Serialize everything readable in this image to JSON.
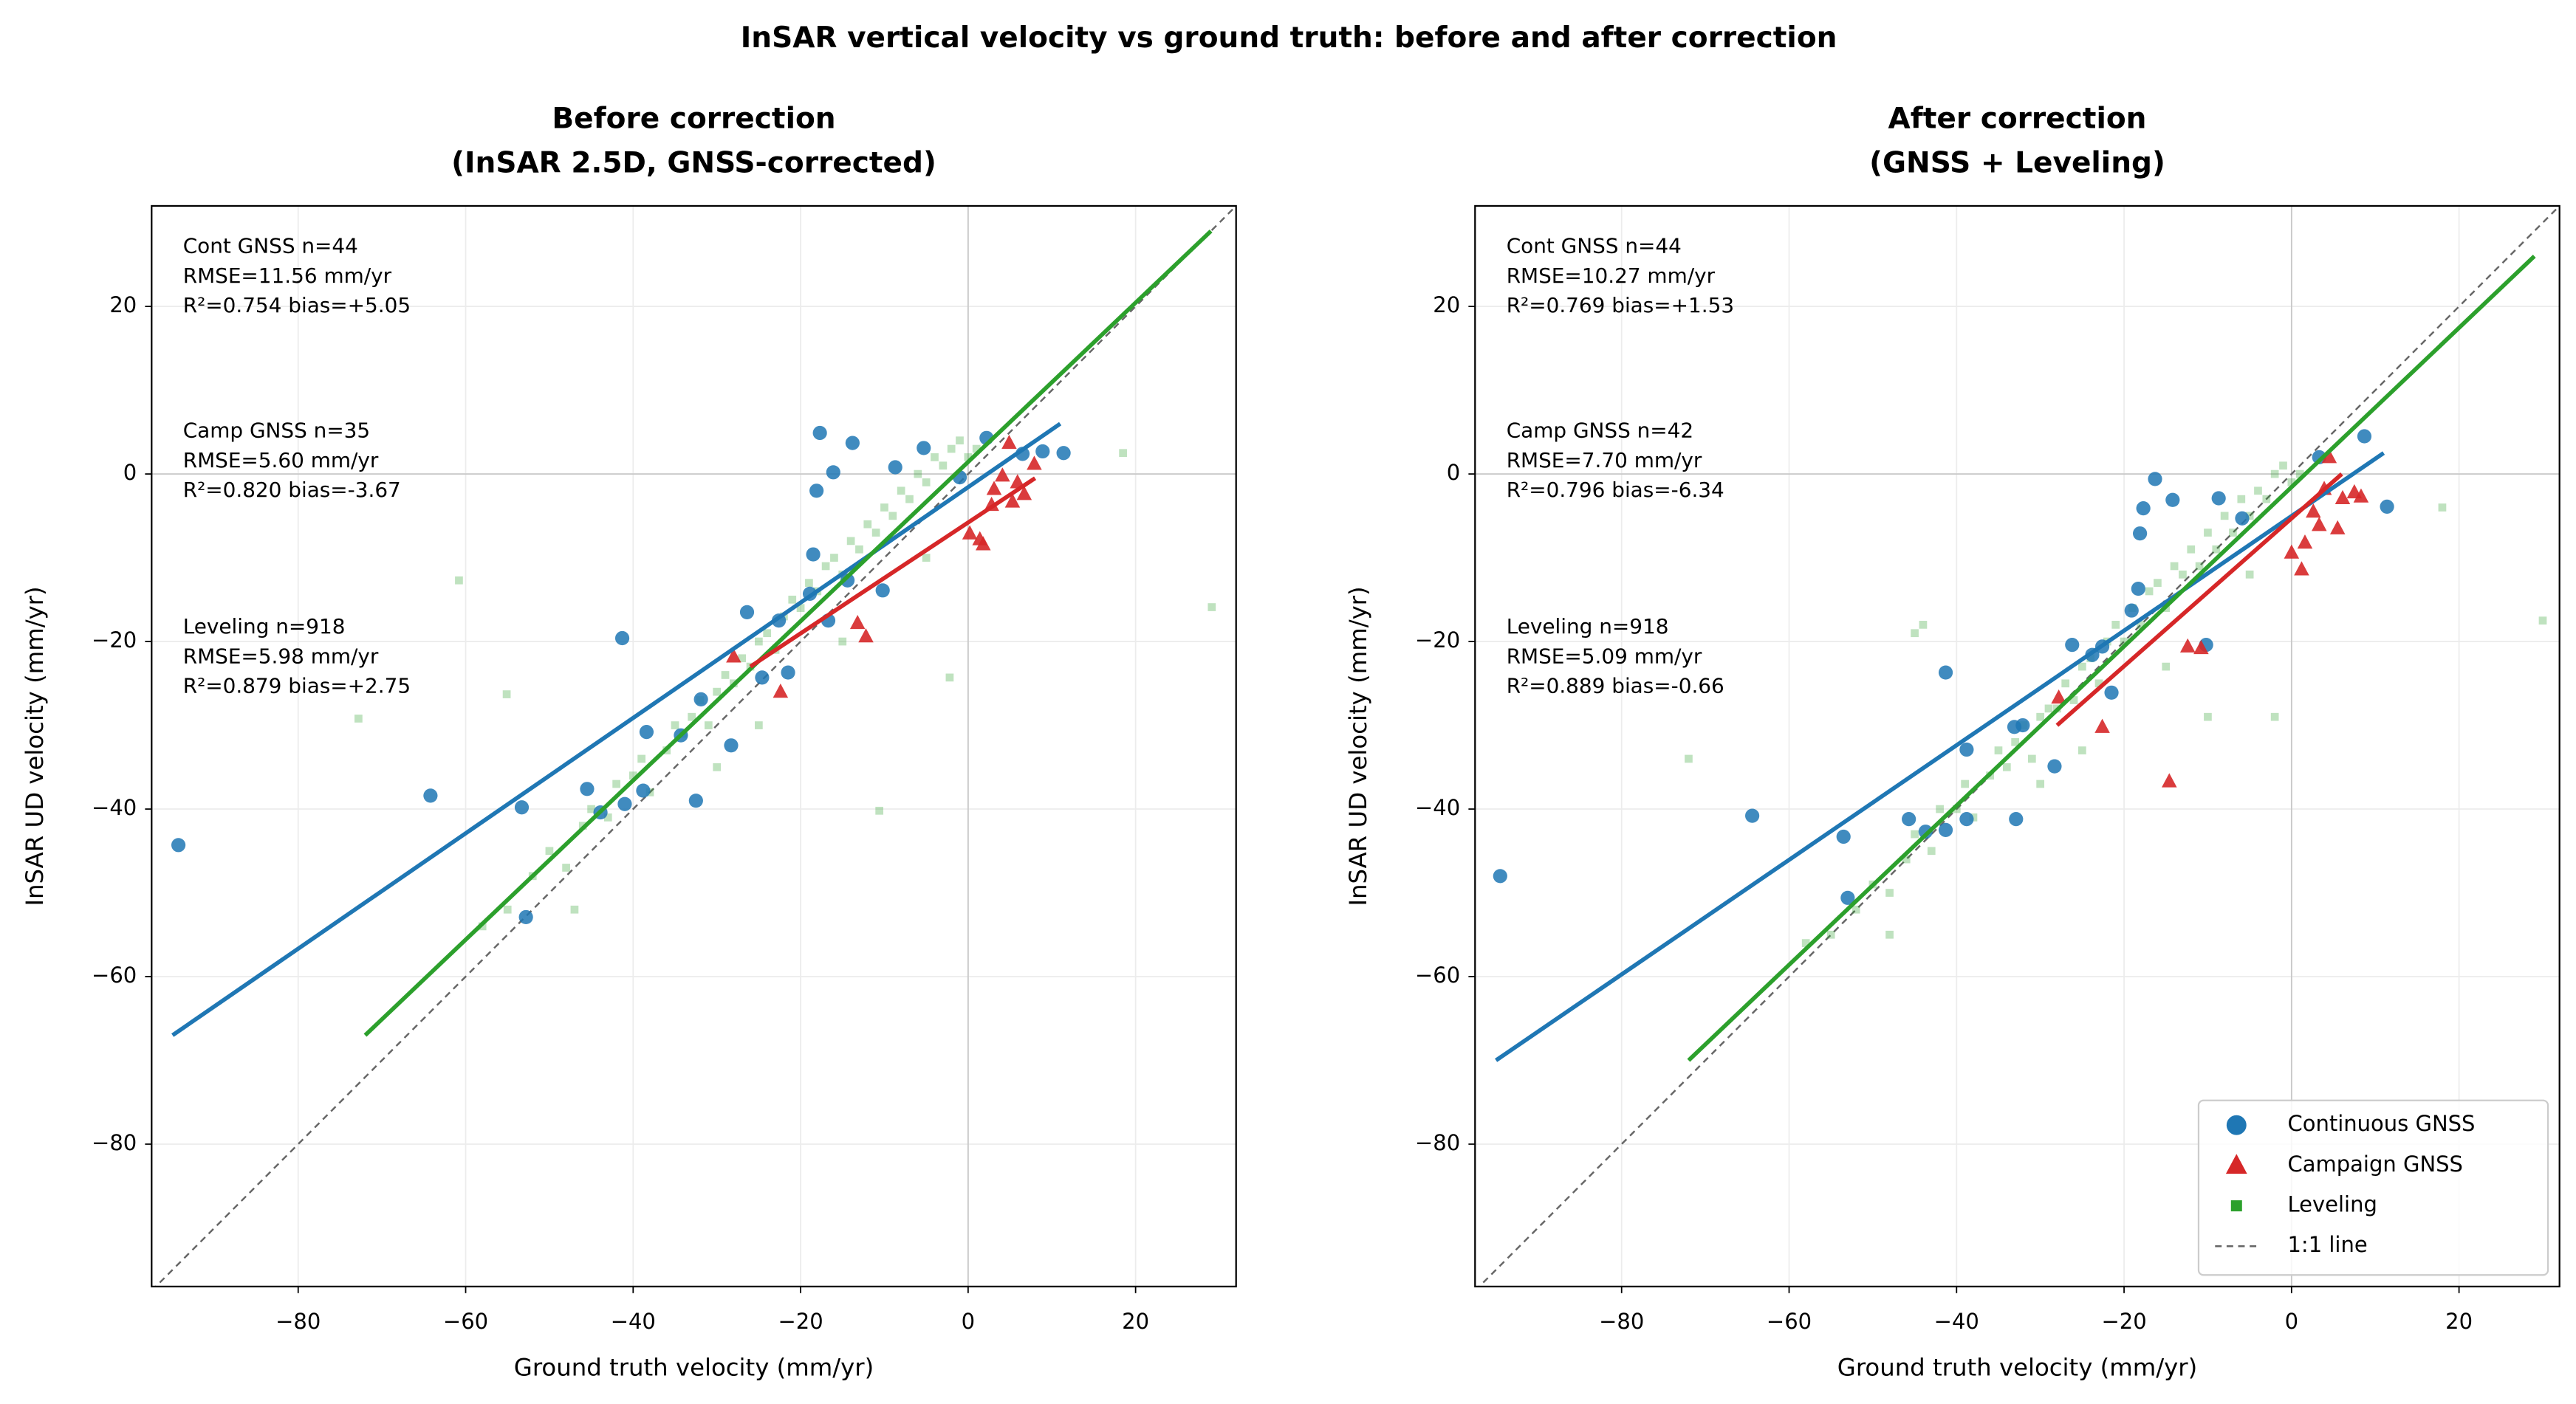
{
  "title": "InSAR vertical velocity vs ground truth: before and after correction",
  "chart_data": [
    {
      "type": "scatter",
      "title_lines": [
        "Before correction",
        "(InSAR 2.5D, GNSS-corrected)"
      ],
      "xlabel": "Ground truth velocity (mm/yr)",
      "ylabel": "InSAR UD velocity (mm/yr)",
      "xlim": [
        -97.5,
        32
      ],
      "ylim": [
        -97,
        32
      ],
      "xticks": [
        {
          "value": -80,
          "label": "−80"
        },
        {
          "value": -60,
          "label": "−60"
        },
        {
          "value": -40,
          "label": "−40"
        },
        {
          "value": -20,
          "label": "−20"
        },
        0,
        20
      ],
      "yticks": [
        {
          "value": -80,
          "label": "−80"
        },
        {
          "value": -60,
          "label": "−60"
        },
        {
          "value": -40,
          "label": "−40"
        },
        {
          "value": -20,
          "label": "−20"
        },
        0,
        20
      ],
      "grid": true,
      "legend": false,
      "reference_line": {
        "color": "#666666"
      },
      "series": [
        {
          "color": "#2ca02c",
          "marker": "square",
          "x": [
            -55,
            -52,
            -50,
            -48,
            -46,
            -45,
            -43,
            -42,
            -40,
            -39,
            -38,
            -36,
            -35,
            -34,
            -33,
            -32,
            -31,
            -30,
            -29,
            -28,
            -27,
            -26,
            -25,
            -24,
            -23,
            -22,
            -21,
            -20,
            -19,
            -18,
            -17,
            -16,
            -15,
            -14,
            -13,
            -12,
            -11,
            -10,
            -9,
            -8,
            -7,
            -6,
            -5,
            -4,
            -3,
            -2,
            -1,
            0,
            1,
            -60.8,
            -72.8,
            29.1,
            18.5,
            -10.6,
            -2.2,
            -55.1,
            -47,
            -58,
            -25,
            -30,
            -15,
            -5
          ],
          "y": [
            -52,
            -48,
            -45,
            -47,
            -42,
            -40,
            -41,
            -37,
            -36,
            -34,
            -38,
            -33,
            -30,
            -31,
            -29,
            -27,
            -30,
            -26,
            -24,
            -25,
            -22,
            -23,
            -20,
            -19,
            -21,
            -17,
            -15,
            -16,
            -13,
            -14,
            -11,
            -10,
            -12,
            -8,
            -9,
            -6,
            -7,
            -4,
            -5,
            -2,
            -3,
            0,
            -1,
            2,
            1,
            3,
            4,
            2,
            3,
            -12.7,
            -29.2,
            -15.9,
            2.5,
            -40.2,
            -24.3,
            -26.3,
            -52,
            -54,
            -30,
            -35,
            -20,
            -10
          ]
        },
        {
          "color": "#1f77b4",
          "marker": "circle",
          "x": [
            -94.3,
            -64.2,
            -53.3,
            -52.8,
            -45.5,
            -41.3,
            -43.9,
            -41,
            -38.4,
            -38.8,
            -34.3,
            -32.5,
            -28.3,
            -31.9,
            -26.4,
            -24.6,
            -21.5,
            -22.6,
            -18.5,
            -17.7,
            -18.1,
            -16.1,
            -13.8,
            -16.7,
            -10.2,
            -8.7,
            -5.3,
            -1,
            2.2,
            6.5,
            8.9,
            11.4,
            -18.9,
            -14.4
          ],
          "y": [
            -44.3,
            -38.4,
            -39.8,
            -52.9,
            -37.6,
            -19.6,
            -40.4,
            -39.4,
            -30.8,
            -37.8,
            -31.2,
            -39,
            -32.4,
            -26.9,
            -16.5,
            -24.3,
            -23.7,
            -17.5,
            -9.6,
            4.9,
            -2,
            0.2,
            3.7,
            -17.5,
            -13.9,
            0.8,
            3.1,
            -0.4,
            4.3,
            2.4,
            2.7,
            2.5,
            -14.3,
            -12.7
          ]
        },
        {
          "color": "#d62728",
          "marker": "triangle",
          "x": [
            -28,
            -22.4,
            -13.2,
            -12.2,
            0.2,
            1.4,
            1.8,
            3.1,
            4.1,
            4.9,
            5.9,
            6.7,
            7.9,
            2.8,
            5.3
          ],
          "y": [
            -21.8,
            -26,
            -17.8,
            -19.4,
            -7.1,
            -7.8,
            -8.4,
            -1.8,
            -0.2,
            3.7,
            -1,
            -2.4,
            1.2,
            -3.7,
            -3.3
          ]
        }
      ],
      "fits": [
        {
          "color": "#1f77b4",
          "x": [
            -95,
            11
          ],
          "y": [
            -67,
            6
          ]
        },
        {
          "color": "#2ca02c",
          "x": [
            -72,
            29
          ],
          "y": [
            -67,
            29
          ]
        },
        {
          "color": "#d62728",
          "x": [
            -26,
            8
          ],
          "y": [
            -23,
            -0.5
          ]
        }
      ],
      "annotations": [
        {
          "color": "#1f77b4",
          "lines": [
            "Cont GNSS  n=44",
            "RMSE=11.56 mm/yr",
            "R²=0.754  bias=+5.05"
          ]
        },
        {
          "color": "#d62728",
          "lines": [
            "Camp GNSS  n=35",
            "RMSE=5.60 mm/yr",
            "R²=0.820  bias=-3.67"
          ]
        },
        {
          "color": "#2ca02c",
          "lines": [
            "Leveling  n=918",
            "RMSE=5.98 mm/yr",
            "R²=0.879  bias=+2.75"
          ]
        }
      ]
    },
    {
      "type": "scatter",
      "title_lines": [
        "After correction",
        "(GNSS + Leveling)"
      ],
      "xlabel": "Ground truth velocity (mm/yr)",
      "ylabel": "InSAR UD velocity (mm/yr)",
      "xlim": [
        -97.5,
        32
      ],
      "ylim": [
        -97,
        32
      ],
      "xticks": [
        {
          "value": -80,
          "label": "−80"
        },
        {
          "value": -60,
          "label": "−60"
        },
        {
          "value": -40,
          "label": "−40"
        },
        {
          "value": -20,
          "label": "−20"
        },
        0,
        20
      ],
      "yticks": [
        {
          "value": -80,
          "label": "−80"
        },
        {
          "value": -60,
          "label": "−60"
        },
        {
          "value": -40,
          "label": "−40"
        },
        {
          "value": -20,
          "label": "−20"
        },
        0,
        20
      ],
      "grid": true,
      "legend": "lower right",
      "reference_line": {
        "name": "1:1 line",
        "color": "#666666"
      },
      "series": [
        {
          "name": "Leveling",
          "color": "#2ca02c",
          "marker": "square",
          "x": [
            -55,
            -52,
            -50,
            -48,
            -46,
            -45,
            -43,
            -42,
            -40,
            -39,
            -38,
            -36,
            -35,
            -34,
            -33,
            -32,
            -31,
            -30,
            -29,
            -28,
            -27,
            -26,
            -25,
            -24,
            -23,
            -22,
            -21,
            -20,
            -19,
            -18,
            -17,
            -16,
            -15,
            -14,
            -13,
            -12,
            -11,
            -10,
            -9,
            -8,
            -7,
            -6,
            -5,
            -4,
            -3,
            -2,
            -1,
            0,
            1,
            -44,
            -72,
            30,
            18,
            -10,
            -2,
            -45,
            -48,
            -58,
            -25,
            -30,
            -15,
            -5
          ],
          "y": [
            -55,
            -52,
            -49,
            -50,
            -46,
            -43,
            -45,
            -40,
            -40,
            -37,
            -41,
            -36,
            -33,
            -35,
            -32,
            -30,
            -34,
            -29,
            -28,
            -28,
            -25,
            -27,
            -23,
            -22,
            -25,
            -20,
            -18,
            -20,
            -16,
            -18,
            -14,
            -13,
            -16,
            -11,
            -12,
            -9,
            -11,
            -7,
            -9,
            -5,
            -7,
            -3,
            -5,
            -2,
            -3,
            0,
            1,
            -1,
            0,
            -18,
            -34,
            -17.5,
            -4,
            -29,
            -29,
            -19,
            -55,
            -56,
            -33,
            -37,
            -23,
            -12
          ]
        },
        {
          "name": "Continuous GNSS",
          "color": "#1f77b4",
          "marker": "circle",
          "x": [
            -94.5,
            -64.4,
            -53.5,
            -53,
            -45.7,
            -41.3,
            -43.7,
            -41.3,
            -38.8,
            -38.8,
            -33.1,
            -32.9,
            -28.3,
            -32.1,
            -26.2,
            -23.8,
            -21.5,
            -22.6,
            -18.1,
            -16.3,
            -17.7,
            -14.2,
            -18.3,
            -10.2,
            -8.7,
            -5.9,
            3.3,
            8.7,
            11.4,
            -19.1
          ],
          "y": [
            -48,
            -40.8,
            -43.3,
            -50.6,
            -41.2,
            -23.7,
            -42.7,
            -42.5,
            -32.9,
            -41.2,
            -30.2,
            -41.2,
            -34.9,
            -30,
            -20.4,
            -21.6,
            -26.1,
            -20.6,
            -7.1,
            -0.6,
            -4.1,
            -3.1,
            -13.7,
            -20.4,
            -2.9,
            -5.3,
            2,
            4.5,
            -3.9,
            -16.3
          ]
        },
        {
          "name": "Campaign GNSS",
          "color": "#d62728",
          "marker": "triangle",
          "x": [
            -27.8,
            -22.6,
            -14.6,
            -12.4,
            -10.8,
            0,
            1.2,
            1.6,
            2.6,
            3.9,
            4.5,
            5.5,
            6.1,
            7.5,
            8.3,
            3.3
          ],
          "y": [
            -26.7,
            -30.2,
            -36.7,
            -20.6,
            -20.8,
            -9.4,
            -11.4,
            -8.2,
            -4.5,
            -1.8,
            2,
            -6.5,
            -2.9,
            -2.2,
            -2.7,
            -6.1
          ]
        }
      ],
      "fits": [
        {
          "color": "#1f77b4",
          "x": [
            -95,
            11
          ],
          "y": [
            -70,
            2.5
          ]
        },
        {
          "color": "#2ca02c",
          "x": [
            -72,
            29
          ],
          "y": [
            -70,
            26
          ]
        },
        {
          "color": "#d62728",
          "x": [
            -28,
            6
          ],
          "y": [
            -30,
            0
          ]
        }
      ],
      "annotations": [
        {
          "color": "#1f77b4",
          "lines": [
            "Cont GNSS  n=44",
            "RMSE=10.27 mm/yr",
            "R²=0.769  bias=+1.53"
          ]
        },
        {
          "color": "#d62728",
          "lines": [
            "Camp GNSS  n=42",
            "RMSE=7.70 mm/yr",
            "R²=0.796  bias=-6.34"
          ]
        },
        {
          "color": "#2ca02c",
          "lines": [
            "Leveling  n=918",
            "RMSE=5.09 mm/yr",
            "R²=0.889  bias=-0.66"
          ]
        }
      ]
    }
  ]
}
